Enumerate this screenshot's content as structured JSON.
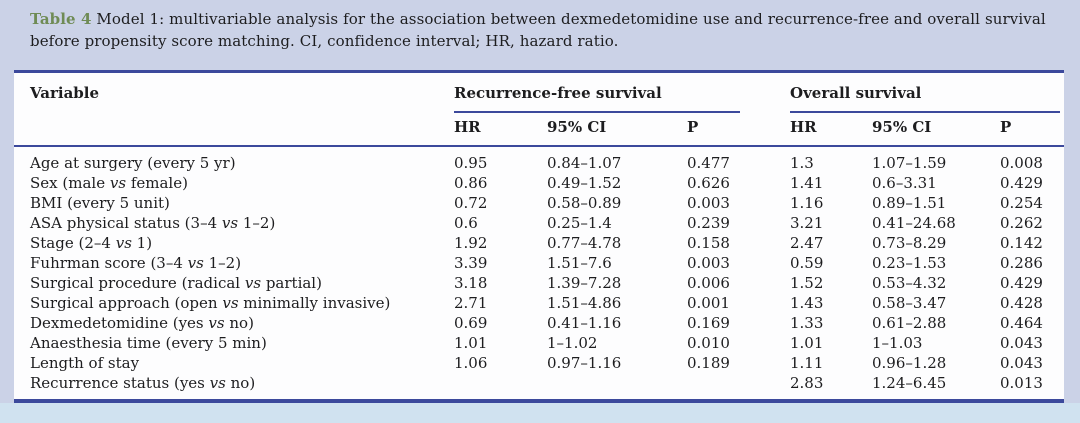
{
  "caption": {
    "label": "Table 4",
    "text": "Model 1: multivariable analysis for the association between dexmedetomidine use and recurrence-free and overall survival before propensity score matching. CI, confidence interval; HR, hazard ratio."
  },
  "colors": {
    "page-bg": "#cbd2e7",
    "strip-bg": "#d0e2f0",
    "table-bg": "#fdfdfe",
    "navy": "#3c499c",
    "text": "#1d1d1f",
    "label-green": "#6f8b55"
  },
  "table": {
    "variable_header": "Variable",
    "groups": [
      "Recurrence-free survival",
      "Overall survival"
    ],
    "subheaders": [
      "HR",
      "95% CI",
      "P"
    ],
    "rows": [
      {
        "variable": "Age at surgery (every 5 yr)",
        "rfs": {
          "hr": "0.95",
          "ci": "0.84–1.07",
          "p": "0.477"
        },
        "os": {
          "hr": "1.3",
          "ci": "1.07–1.59",
          "p": "0.008"
        }
      },
      {
        "variable": "Sex (male vs female)",
        "rfs": {
          "hr": "0.86",
          "ci": "0.49–1.52",
          "p": "0.626"
        },
        "os": {
          "hr": "1.41",
          "ci": "0.6–3.31",
          "p": "0.429"
        }
      },
      {
        "variable": "BMI (every 5 unit)",
        "rfs": {
          "hr": "0.72",
          "ci": "0.58–0.89",
          "p": "0.003"
        },
        "os": {
          "hr": "1.16",
          "ci": "0.89–1.51",
          "p": "0.254"
        }
      },
      {
        "variable": "ASA physical status (3–4 vs 1–2)",
        "rfs": {
          "hr": "0.6",
          "ci": "0.25–1.4",
          "p": "0.239"
        },
        "os": {
          "hr": "3.21",
          "ci": "0.41–24.68",
          "p": "0.262"
        }
      },
      {
        "variable": "Stage (2–4 vs 1)",
        "rfs": {
          "hr": "1.92",
          "ci": "0.77–4.78",
          "p": "0.158"
        },
        "os": {
          "hr": "2.47",
          "ci": "0.73–8.29",
          "p": "0.142"
        }
      },
      {
        "variable": "Fuhrman score (3–4 vs 1–2)",
        "rfs": {
          "hr": "3.39",
          "ci": "1.51–7.6",
          "p": "0.003"
        },
        "os": {
          "hr": "0.59",
          "ci": "0.23–1.53",
          "p": "0.286"
        }
      },
      {
        "variable": "Surgical procedure (radical vs partial)",
        "rfs": {
          "hr": "3.18",
          "ci": "1.39–7.28",
          "p": "0.006"
        },
        "os": {
          "hr": "1.52",
          "ci": "0.53–4.32",
          "p": "0.429"
        }
      },
      {
        "variable": "Surgical approach (open vs minimally invasive)",
        "rfs": {
          "hr": "2.71",
          "ci": "1.51–4.86",
          "p": "0.001"
        },
        "os": {
          "hr": "1.43",
          "ci": "0.58–3.47",
          "p": "0.428"
        }
      },
      {
        "variable": "Dexmedetomidine (yes vs no)",
        "rfs": {
          "hr": "0.69",
          "ci": "0.41–1.16",
          "p": "0.169"
        },
        "os": {
          "hr": "1.33",
          "ci": "0.61–2.88",
          "p": "0.464"
        }
      },
      {
        "variable": "Anaesthesia time (every 5 min)",
        "rfs": {
          "hr": "1.01",
          "ci": "1–1.02",
          "p": "0.010"
        },
        "os": {
          "hr": "1.01",
          "ci": "1–1.03",
          "p": "0.043"
        }
      },
      {
        "variable": "Length of stay",
        "rfs": {
          "hr": "1.06",
          "ci": "0.97–1.16",
          "p": "0.189"
        },
        "os": {
          "hr": "1.11",
          "ci": "0.96–1.28",
          "p": "0.043"
        }
      },
      {
        "variable": "Recurrence status (yes vs no)",
        "rfs": {
          "hr": "",
          "ci": "",
          "p": ""
        },
        "os": {
          "hr": "2.83",
          "ci": "1.24–6.45",
          "p": "0.013"
        }
      }
    ]
  }
}
